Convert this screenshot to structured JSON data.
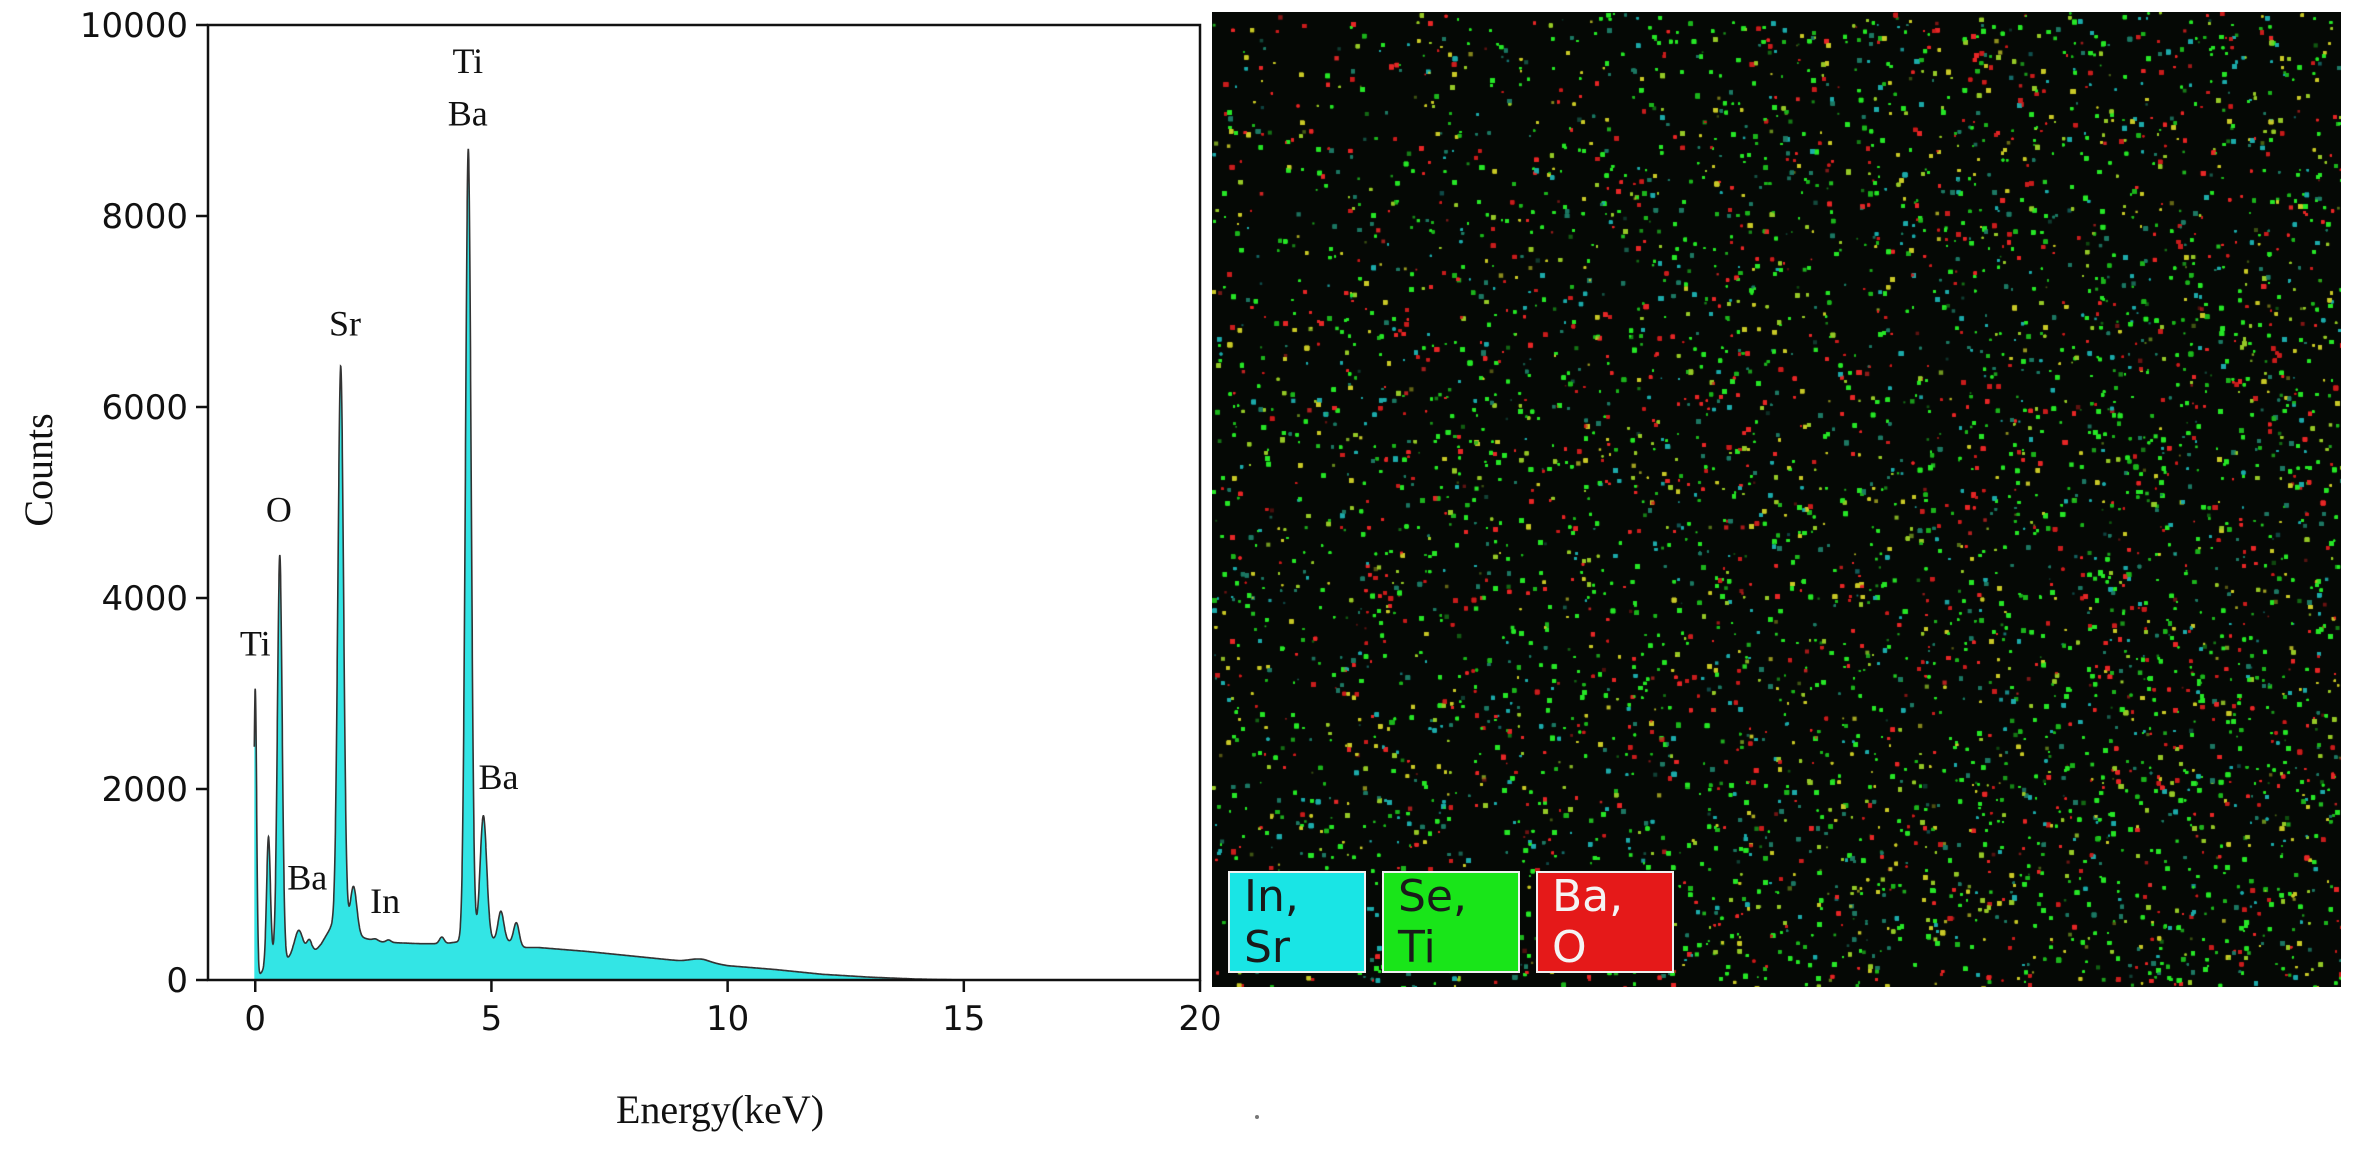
{
  "chart_data": {
    "type": "area",
    "title": "",
    "xlabel": "Energy(keV)",
    "ylabel": "Counts",
    "xlim": [
      -1,
      20
    ],
    "ylim": [
      0,
      10000
    ],
    "x_ticks": [
      0,
      5,
      10,
      15,
      20
    ],
    "y_ticks": [
      0,
      2000,
      4000,
      6000,
      8000,
      10000
    ],
    "fill_color": "#33e5e5",
    "line_color": "#333333",
    "baseline_points": [
      [
        0.0,
        0
      ],
      [
        0.1,
        60
      ],
      [
        0.2,
        120
      ],
      [
        0.4,
        250
      ],
      [
        0.6,
        180
      ],
      [
        0.8,
        280
      ],
      [
        1.0,
        300
      ],
      [
        1.2,
        260
      ],
      [
        1.4,
        380
      ],
      [
        1.6,
        550
      ],
      [
        1.75,
        620
      ],
      [
        2.0,
        480
      ],
      [
        2.3,
        440
      ],
      [
        2.6,
        400
      ],
      [
        3.0,
        390
      ],
      [
        3.5,
        380
      ],
      [
        4.0,
        380
      ],
      [
        4.3,
        400
      ],
      [
        4.6,
        420
      ],
      [
        5.0,
        420
      ],
      [
        5.3,
        420
      ],
      [
        5.6,
        340
      ],
      [
        6.0,
        340
      ],
      [
        7.0,
        300
      ],
      [
        8.0,
        250
      ],
      [
        9.0,
        200
      ],
      [
        9.5,
        190
      ],
      [
        10.0,
        150
      ],
      [
        11.0,
        110
      ],
      [
        12.0,
        60
      ],
      [
        13.0,
        30
      ],
      [
        14.0,
        10
      ],
      [
        15.0,
        0
      ],
      [
        20.0,
        0
      ]
    ],
    "peaks": [
      {
        "x": 0.0,
        "y": 3050,
        "width": 0.03
      },
      {
        "x": 0.28,
        "y": 1500,
        "width": 0.04
      },
      {
        "x": 0.52,
        "y": 4450,
        "width": 0.05
      },
      {
        "x": 0.92,
        "y": 520,
        "width": 0.08
      },
      {
        "x": 1.15,
        "y": 420,
        "width": 0.06
      },
      {
        "x": 1.81,
        "y": 6430,
        "width": 0.06
      },
      {
        "x": 2.08,
        "y": 980,
        "width": 0.07
      },
      {
        "x": 2.55,
        "y": 430,
        "width": 0.06
      },
      {
        "x": 2.82,
        "y": 420,
        "width": 0.05
      },
      {
        "x": 3.95,
        "y": 450,
        "width": 0.05
      },
      {
        "x": 4.51,
        "y": 8700,
        "width": 0.06
      },
      {
        "x": 4.83,
        "y": 1720,
        "width": 0.07
      },
      {
        "x": 5.2,
        "y": 720,
        "width": 0.06
      },
      {
        "x": 5.53,
        "y": 600,
        "width": 0.06
      },
      {
        "x": 9.4,
        "y": 220,
        "width": 0.2
      }
    ],
    "annotations": [
      {
        "text": "Ti",
        "x": 0.0,
        "y": 3400
      },
      {
        "text": "O",
        "x": 0.5,
        "y": 4800
      },
      {
        "text": "Ba",
        "x": 1.1,
        "y": 950
      },
      {
        "text": "Sr",
        "x": 1.9,
        "y": 6750
      },
      {
        "text": "In",
        "x": 2.75,
        "y": 700
      },
      {
        "text": "Ti",
        "x": 4.5,
        "y": 9500
      },
      {
        "text": "Ba",
        "x": 4.5,
        "y": 8950
      },
      {
        "text": "Ba",
        "x": 5.15,
        "y": 2000
      }
    ]
  },
  "map": {
    "legend": [
      {
        "label": "In, Sr",
        "color": "#19e5e5"
      },
      {
        "label": "Se, Ti",
        "color": "#19e519"
      },
      {
        "label": "Ba, O",
        "color": "#e51919"
      }
    ],
    "background": "#050805"
  }
}
